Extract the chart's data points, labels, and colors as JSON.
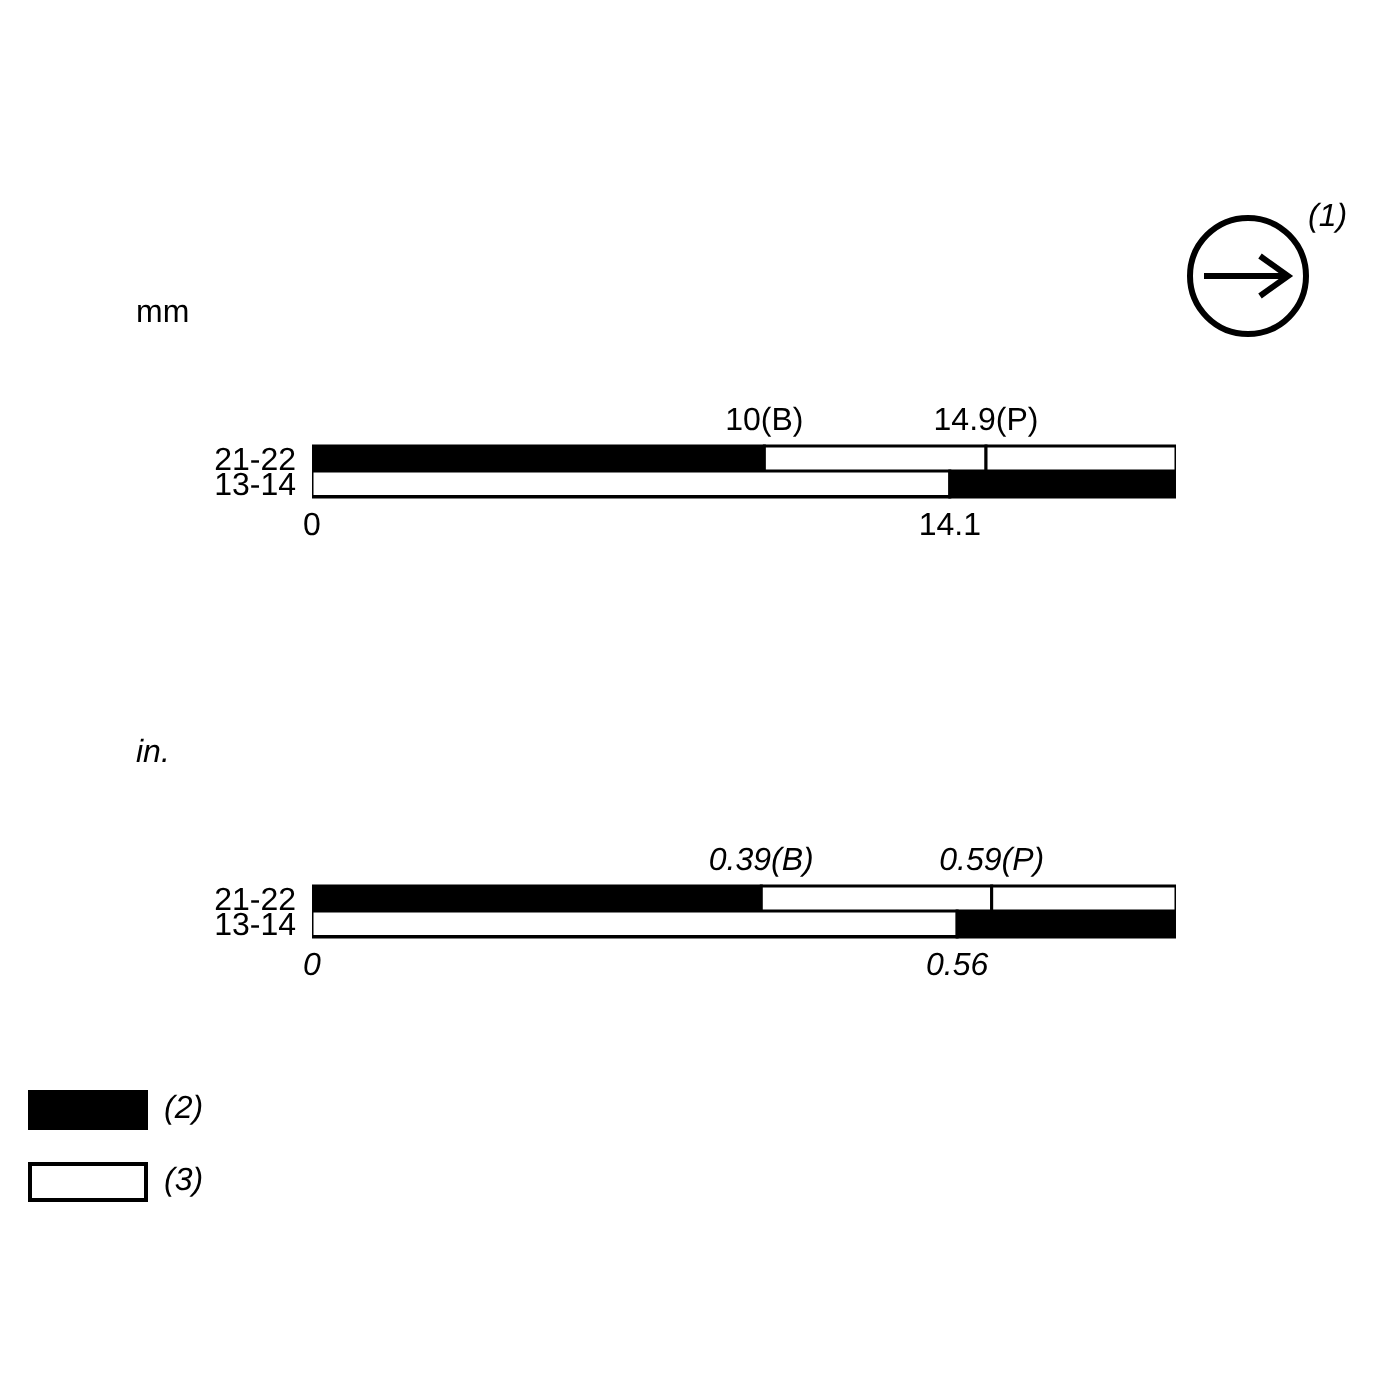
{
  "chart_data": [
    {
      "type": "bar",
      "orientation": "horizontal",
      "stacked": true,
      "xlabel": "mm",
      "categories": [
        "21-22",
        "13-14"
      ],
      "series": [
        {
          "color": "#000000",
          "values": [
            10,
            null
          ]
        },
        {
          "color": "#ffffff",
          "values": [
            4.9,
            14.1
          ]
        },
        {
          "color": "#ffffff",
          "values": [
            4.2,
            null
          ]
        },
        {
          "color": "#000000",
          "values": [
            null,
            5.0
          ]
        }
      ],
      "xlim": [
        0,
        19.1
      ],
      "xticks": [
        0,
        14.1
      ],
      "x2lim": [
        0,
        19.1
      ],
      "x2ticks": [
        {
          "value": 10,
          "label": "10(B)"
        },
        {
          "value": 14.9,
          "label": "14.9(P)"
        }
      ],
      "annotations": [
        "(1)"
      ],
      "grid": false,
      "legend": false
    },
    {
      "type": "bar",
      "orientation": "horizontal",
      "stacked": true,
      "xlabel": "in.",
      "categories": [
        "21-22",
        "13-14"
      ],
      "series": [
        {
          "name": "(2)",
          "color": "#000000",
          "values": [
            0.39,
            null
          ]
        },
        {
          "name": "(3)",
          "color": "#ffffff",
          "values": [
            0.2,
            0.56
          ]
        },
        {
          "color": "#ffffff",
          "values": [
            0.16,
            null
          ]
        },
        {
          "color": "#000000",
          "values": [
            null,
            0.19
          ]
        }
      ],
      "xlim": [
        0,
        0.75
      ],
      "xticks": [
        0,
        0.56
      ],
      "x2lim": [
        0,
        0.75
      ],
      "x2ticks": [
        {
          "value": 0.39,
          "label": "0.39(B)"
        },
        {
          "value": 0.59,
          "label": "0.59(P)"
        }
      ],
      "grid": false,
      "legend": "bottom left"
    }
  ]
}
